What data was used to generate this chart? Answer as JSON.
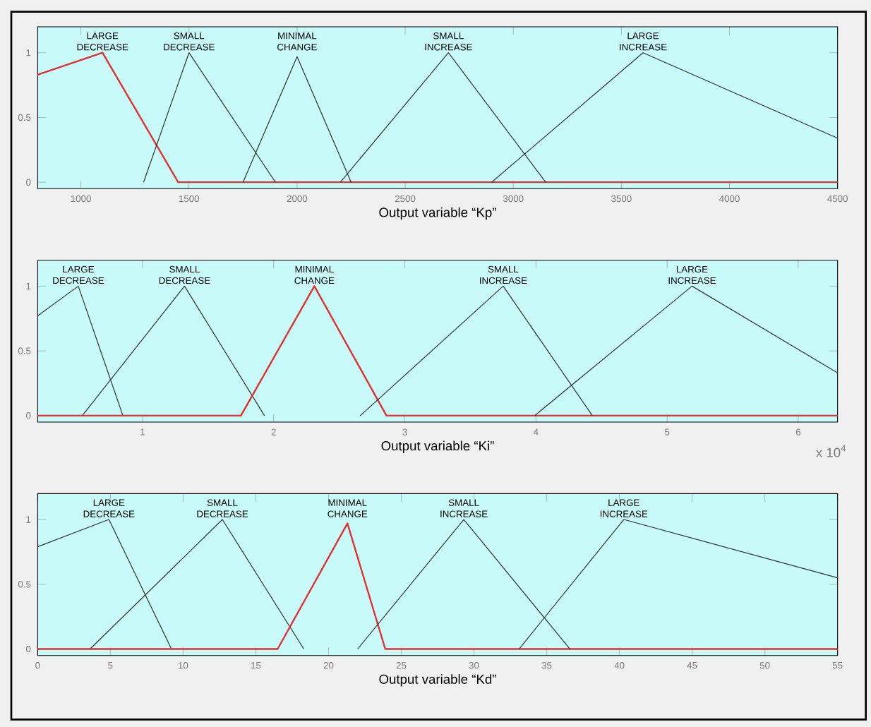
{
  "chart_data": [
    {
      "type": "line",
      "xlabel": "Output variable “Kp”",
      "xlim": [
        800,
        4500
      ],
      "ylim": [
        -0.05,
        1.2
      ],
      "xticks": [
        1000,
        1500,
        2000,
        2500,
        3000,
        3500,
        4000,
        4500
      ],
      "yticks": [
        0,
        0.5,
        1
      ],
      "series": [
        {
          "name": "LARGE DECREASE",
          "color": "#e03030",
          "x": [
            800,
            1100,
            1450,
            4500
          ],
          "values": [
            0.83,
            1,
            0,
            0
          ]
        },
        {
          "name": "SMALL DECREASE",
          "color": "#303030",
          "x": [
            1290,
            1500,
            1900
          ],
          "values": [
            0,
            1,
            0
          ]
        },
        {
          "name": "MINIMAL CHANGE",
          "color": "#303030",
          "x": [
            1750,
            2000,
            2250
          ],
          "values": [
            0,
            0.97,
            0
          ]
        },
        {
          "name": "SMALL INCREASE",
          "color": "#303030",
          "x": [
            2200,
            2700,
            3150
          ],
          "values": [
            0,
            1,
            0
          ]
        },
        {
          "name": "LARGE INCREASE",
          "color": "#303030",
          "x": [
            2900,
            3600,
            4500
          ],
          "values": [
            0,
            1,
            0.34
          ]
        }
      ]
    },
    {
      "type": "line",
      "xlabel": "Output variable “Ki”",
      "xlim": [
        0.2,
        6.3
      ],
      "ylim": [
        -0.05,
        1.2
      ],
      "xticks": [
        1,
        2,
        3,
        4,
        5,
        6
      ],
      "yticks": [
        0,
        0.5,
        1
      ],
      "annotations": [
        "x 10$^{4}$"
      ],
      "series": [
        {
          "name": "LARGE DECREASE",
          "color": "#303030",
          "x": [
            0.2,
            0.51,
            0.85
          ],
          "values": [
            0.77,
            1,
            0
          ]
        },
        {
          "name": "SMALL DECREASE",
          "color": "#303030",
          "x": [
            0.54,
            1.32,
            1.93
          ],
          "values": [
            0,
            1,
            0
          ]
        },
        {
          "name": "MINIMAL CHANGE",
          "color": "#e03030",
          "x": [
            0.2,
            1.75,
            2.31,
            2.86,
            6.3
          ],
          "values": [
            0,
            0,
            1,
            0,
            0
          ]
        },
        {
          "name": "SMALL INCREASE",
          "color": "#303030",
          "x": [
            2.66,
            3.75,
            4.43
          ],
          "values": [
            0,
            1,
            0
          ]
        },
        {
          "name": "LARGE INCREASE",
          "color": "#303030",
          "x": [
            3.99,
            5.19,
            6.3
          ],
          "values": [
            0,
            1,
            0.33
          ]
        }
      ]
    },
    {
      "type": "line",
      "xlabel": "Output variable “Kd”",
      "xlim": [
        0,
        55
      ],
      "ylim": [
        -0.05,
        1.2
      ],
      "xticks": [
        0,
        5,
        10,
        15,
        20,
        25,
        30,
        35,
        40,
        45,
        50,
        55
      ],
      "yticks": [
        0,
        0.5,
        1
      ],
      "series": [
        {
          "name": "LARGE DECREASE",
          "color": "#303030",
          "x": [
            0,
            4.9,
            9.2
          ],
          "values": [
            0.79,
            1,
            0
          ]
        },
        {
          "name": "SMALL DECREASE",
          "color": "#303030",
          "x": [
            3.6,
            12.7,
            18.3
          ],
          "values": [
            0,
            1,
            0
          ]
        },
        {
          "name": "MINIMAL CHANGE",
          "color": "#e03030",
          "x": [
            0,
            16.5,
            21.3,
            23.9,
            55
          ],
          "values": [
            0,
            0,
            0.97,
            0,
            0
          ]
        },
        {
          "name": "SMALL INCREASE",
          "color": "#303030",
          "x": [
            22.0,
            29.3,
            36.6
          ],
          "values": [
            0,
            1,
            0
          ]
        },
        {
          "name": "LARGE INCREASE",
          "color": "#303030",
          "x": [
            33.1,
            40.3,
            55
          ],
          "values": [
            0,
            1,
            0.55
          ]
        }
      ]
    }
  ]
}
